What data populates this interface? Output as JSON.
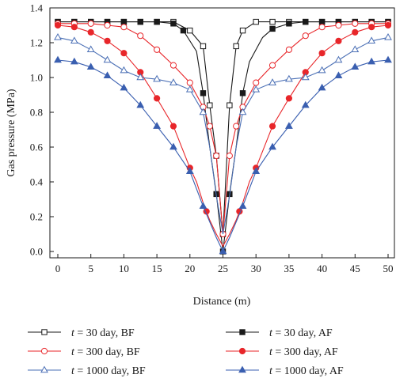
{
  "chart_data": {
    "type": "line",
    "xlabel": "Distance (m)",
    "ylabel": "Gas pressure (MPa)",
    "xlim": [
      0,
      50
    ],
    "ylim": [
      0,
      1.4
    ],
    "x_ticks": [
      0,
      5,
      10,
      15,
      20,
      25,
      30,
      35,
      40,
      45,
      50
    ],
    "x_tick_labels": [
      "0",
      "5",
      "10",
      "15",
      "20",
      "25",
      "30",
      "35",
      "40",
      "45",
      "50"
    ],
    "y_ticks": [
      0,
      0.2,
      0.4,
      0.6,
      0.8,
      1.0,
      1.2,
      1.4
    ],
    "y_tick_labels": [
      "0.0",
      "0.2",
      "0.4",
      "0.6",
      "0.8",
      "1.0",
      "1.2",
      "1.4"
    ],
    "grid": false,
    "legend_position": "bottom",
    "series": [
      {
        "name": "t = 30 day, BF",
        "legend_var": "t",
        "legend_text": " = 30 day, BF",
        "color": "#1a1a1a",
        "marker": "square",
        "filled": false,
        "x": [
          0,
          2.5,
          5,
          7.5,
          10,
          12.5,
          15,
          17.5,
          20,
          22,
          23,
          24,
          25,
          26,
          27,
          28,
          30,
          32.5,
          35,
          37.5,
          40,
          42.5,
          45,
          47.5,
          50
        ],
        "y": [
          1.32,
          1.32,
          1.32,
          1.32,
          1.32,
          1.32,
          1.32,
          1.32,
          1.27,
          1.18,
          0.84,
          0.55,
          0.1,
          0.84,
          1.18,
          1.27,
          1.32,
          1.32,
          1.32,
          1.32,
          1.32,
          1.32,
          1.32,
          1.32,
          1.32
        ],
        "marker_x": [
          0,
          2.5,
          5,
          7.5,
          10,
          12.5,
          15,
          17.5,
          20,
          22,
          23,
          24,
          25,
          26,
          27,
          28,
          30,
          32.5,
          35,
          37.5,
          40,
          42.5,
          45,
          47.5,
          50
        ]
      },
      {
        "name": "t = 30 day, AF",
        "legend_var": "t",
        "legend_text": " = 30 day, AF",
        "color": "#1a1a1a",
        "marker": "square",
        "filled": true,
        "x": [
          0,
          2.5,
          5,
          7.5,
          10,
          12.5,
          15,
          17.5,
          19,
          21,
          22,
          23,
          24,
          25,
          26,
          27,
          28,
          29,
          31,
          32.5,
          35,
          37.5,
          40,
          42.5,
          45,
          47.5,
          50
        ],
        "y": [
          1.32,
          1.32,
          1.32,
          1.32,
          1.32,
          1.32,
          1.32,
          1.31,
          1.27,
          1.15,
          0.91,
          0.6,
          0.33,
          0.0,
          0.33,
          0.6,
          0.91,
          1.09,
          1.23,
          1.28,
          1.31,
          1.32,
          1.32,
          1.32,
          1.32,
          1.32,
          1.32
        ],
        "marker_x": [
          0,
          2.5,
          5,
          7.5,
          10,
          12.5,
          15,
          17.5,
          19,
          22,
          24,
          25,
          26,
          28,
          32.5,
          35,
          37.5,
          40,
          42.5,
          45,
          47.5,
          50
        ]
      },
      {
        "name": "t = 300 day, BF",
        "legend_var": "t",
        "legend_text": " = 300 day, BF",
        "color": "#e8262a",
        "marker": "circle",
        "filled": false,
        "x": [
          0,
          2.5,
          5,
          7.5,
          10,
          12.5,
          15,
          17.5,
          20,
          22,
          23,
          24,
          25,
          26,
          27,
          28,
          30,
          32.5,
          35,
          37.5,
          40,
          42.5,
          45,
          47.5,
          50
        ],
        "y": [
          1.31,
          1.31,
          1.31,
          1.3,
          1.29,
          1.24,
          1.16,
          1.07,
          0.97,
          0.83,
          0.72,
          0.55,
          0.1,
          0.55,
          0.72,
          0.83,
          0.97,
          1.07,
          1.16,
          1.24,
          1.29,
          1.3,
          1.31,
          1.31,
          1.31
        ],
        "marker_x": [
          0,
          2.5,
          5,
          7.5,
          10,
          12.5,
          15,
          17.5,
          20,
          22,
          23,
          24,
          25,
          26,
          27,
          28,
          30,
          32.5,
          35,
          37.5,
          40,
          42.5,
          45,
          47.5,
          50
        ]
      },
      {
        "name": "t = 300 day, AF",
        "legend_var": "t",
        "legend_text": " = 300 day, AF",
        "color": "#e8262a",
        "marker": "circle",
        "filled": true,
        "x": [
          0,
          2.5,
          5,
          7.5,
          10,
          12.5,
          15,
          17.5,
          20,
          21,
          22,
          23,
          24,
          25,
          26,
          27,
          28,
          29,
          30,
          32.5,
          35,
          37.5,
          40,
          42.5,
          45,
          47.5,
          50
        ],
        "y": [
          1.3,
          1.29,
          1.26,
          1.21,
          1.14,
          1.03,
          0.88,
          0.72,
          0.48,
          0.4,
          0.28,
          0.18,
          0.1,
          0.03,
          0.1,
          0.18,
          0.28,
          0.4,
          0.48,
          0.72,
          0.88,
          1.03,
          1.14,
          1.21,
          1.26,
          1.29,
          1.3
        ],
        "marker_x": [
          0,
          2.5,
          5,
          7.5,
          10,
          12.5,
          15,
          17.5,
          20,
          22.5,
          27.5,
          30,
          32.5,
          35,
          37.5,
          40,
          42.5,
          45,
          47.5,
          50
        ]
      },
      {
        "name": "t = 1000 day, BF",
        "legend_var": "t",
        "legend_text": " = 1000 day, BF",
        "color": "#4a6fb5",
        "marker": "triangle",
        "filled": false,
        "x": [
          0,
          2.5,
          5,
          7.5,
          10,
          12.5,
          15,
          17.5,
          20,
          22,
          23,
          24,
          25,
          26,
          27,
          28,
          30,
          32.5,
          35,
          37.5,
          40,
          42.5,
          45,
          47.5,
          50
        ],
        "y": [
          1.23,
          1.21,
          1.16,
          1.1,
          1.04,
          1.0,
          0.99,
          0.97,
          0.93,
          0.8,
          0.6,
          0.32,
          0.1,
          0.32,
          0.6,
          0.8,
          0.93,
          0.97,
          0.99,
          1.0,
          1.04,
          1.1,
          1.16,
          1.21,
          1.23
        ],
        "marker_x": [
          0,
          2.5,
          5,
          7.5,
          10,
          12.5,
          15,
          17.5,
          20,
          22,
          28,
          30,
          32.5,
          35,
          37.5,
          40,
          42.5,
          45,
          47.5,
          50
        ]
      },
      {
        "name": "t = 1000 day, AF",
        "legend_var": "t",
        "legend_text": " = 1000 day, AF",
        "color": "#3a5fb0",
        "marker": "triangle",
        "filled": true,
        "x": [
          0,
          2.5,
          5,
          7.5,
          10,
          12.5,
          15,
          17.5,
          20,
          22,
          23,
          24,
          25,
          26,
          27,
          28,
          30,
          32.5,
          35,
          37.5,
          40,
          42.5,
          45,
          47.5,
          50
        ],
        "y": [
          1.1,
          1.09,
          1.06,
          1.01,
          0.94,
          0.84,
          0.72,
          0.6,
          0.46,
          0.26,
          0.17,
          0.08,
          0.0,
          0.08,
          0.17,
          0.26,
          0.46,
          0.6,
          0.72,
          0.84,
          0.94,
          1.01,
          1.06,
          1.09,
          1.1
        ],
        "marker_x": [
          0,
          2.5,
          5,
          7.5,
          10,
          12.5,
          15,
          17.5,
          20,
          22,
          25,
          28,
          30,
          32.5,
          35,
          37.5,
          40,
          42.5,
          45,
          47.5,
          50
        ]
      }
    ]
  }
}
